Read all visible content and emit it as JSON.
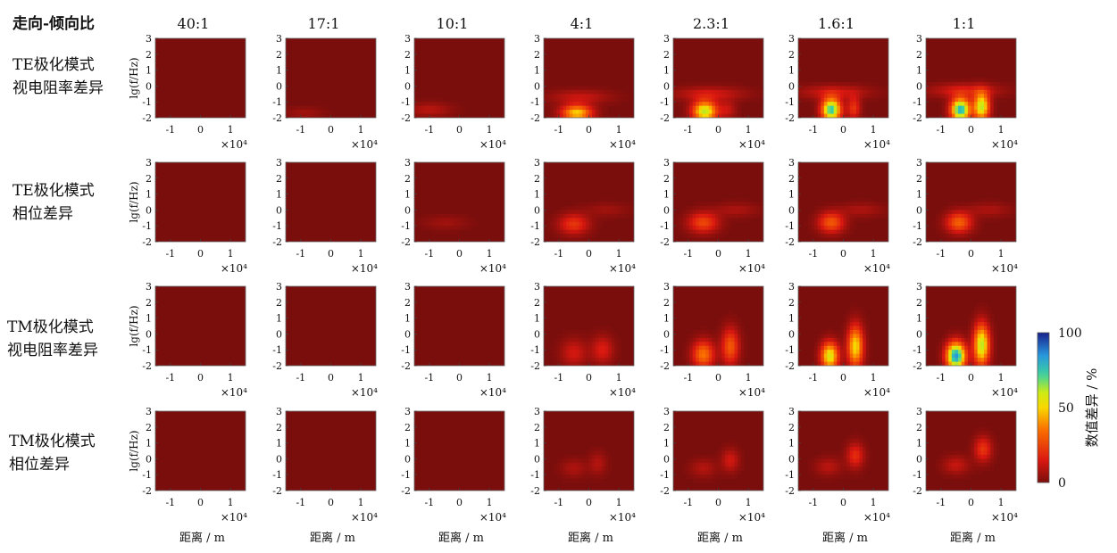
{
  "chart_data": {
    "type": "heatmap",
    "corner_label": "走向-倾向比",
    "columns": [
      "40:1",
      "17:1",
      "10:1",
      "4:1",
      "2.3:1",
      "1.6:1",
      "1:1"
    ],
    "rows": [
      {
        "label_lines": [
          "TE极化模式",
          "视电阻率差异"
        ],
        "key": "te_res"
      },
      {
        "label_lines": [
          "TE极化模式",
          "相位差异"
        ],
        "key": "te_phase"
      },
      {
        "label_lines": [
          "TM极化模式",
          "视电阻率差异"
        ],
        "key": "tm_res"
      },
      {
        "label_lines": [
          "TM极化模式",
          "相位差异"
        ],
        "key": "tm_phase"
      }
    ],
    "ylabel": "lg(f/Hz)",
    "xlabel": "距离 / m",
    "x_multiplier": "×10⁴",
    "xticks": [
      -1,
      0,
      1
    ],
    "yticks": [
      3,
      2,
      1,
      0,
      -1,
      -2
    ],
    "xlim": [
      -1.5,
      1.5
    ],
    "ylim": [
      -2,
      3
    ],
    "colorbar": {
      "label": "数值差异 / %",
      "ticks": [
        0,
        50,
        100
      ],
      "range": [
        0,
        100
      ]
    },
    "anomalies": {
      "te_res": [
        [],
        [
          {
            "x": -0.9,
            "y": -1.7,
            "sx": 0.45,
            "sy": 0.25,
            "peak": 6
          }
        ],
        [
          {
            "x": -1.0,
            "y": -1.5,
            "sx": 0.5,
            "sy": 0.3,
            "peak": 10
          }
        ],
        [
          {
            "x": -0.4,
            "y": -1.7,
            "sx": 0.35,
            "sy": 0.35,
            "peak": 50
          },
          {
            "x": -0.3,
            "y": -0.7,
            "sx": 0.7,
            "sy": 0.3,
            "peak": 12
          }
        ],
        [
          {
            "x": -0.45,
            "y": -1.6,
            "sx": 0.28,
            "sy": 0.45,
            "peak": 62
          },
          {
            "x": -0.3,
            "y": -0.5,
            "sx": 0.8,
            "sy": 0.3,
            "peak": 14
          },
          {
            "x": 0.3,
            "y": -1.5,
            "sx": 0.2,
            "sy": 0.4,
            "peak": 12
          }
        ],
        [
          {
            "x": -0.4,
            "y": -1.5,
            "sx": 0.22,
            "sy": 0.5,
            "peak": 75
          },
          {
            "x": 0.35,
            "y": -1.4,
            "sx": 0.15,
            "sy": 0.5,
            "peak": 22
          },
          {
            "x": -0.3,
            "y": -0.4,
            "sx": 0.8,
            "sy": 0.3,
            "peak": 14
          }
        ],
        [
          {
            "x": -0.35,
            "y": -1.5,
            "sx": 0.22,
            "sy": 0.5,
            "peak": 80
          },
          {
            "x": 0.35,
            "y": -1.3,
            "sx": 0.18,
            "sy": 0.6,
            "peak": 62
          },
          {
            "x": -0.2,
            "y": -0.3,
            "sx": 0.8,
            "sy": 0.3,
            "peak": 16
          }
        ]
      ],
      "te_phase": [
        [],
        [],
        [
          {
            "x": -0.45,
            "y": -0.8,
            "sx": 0.5,
            "sy": 0.3,
            "peak": 6
          }
        ],
        [
          {
            "x": -0.5,
            "y": -0.9,
            "sx": 0.35,
            "sy": 0.45,
            "peak": 22
          },
          {
            "x": 0.6,
            "y": 0.0,
            "sx": 0.5,
            "sy": 0.3,
            "peak": 6
          }
        ],
        [
          {
            "x": -0.5,
            "y": -0.8,
            "sx": 0.35,
            "sy": 0.45,
            "peak": 26
          },
          {
            "x": 0.6,
            "y": 0.0,
            "sx": 0.5,
            "sy": 0.3,
            "peak": 8
          }
        ],
        [
          {
            "x": -0.4,
            "y": -0.8,
            "sx": 0.3,
            "sy": 0.45,
            "peak": 30
          },
          {
            "x": 0.6,
            "y": 0.0,
            "sx": 0.5,
            "sy": 0.3,
            "peak": 8
          }
        ],
        [
          {
            "x": -0.4,
            "y": -0.8,
            "sx": 0.3,
            "sy": 0.45,
            "peak": 32
          },
          {
            "x": 0.6,
            "y": 0.0,
            "sx": 0.5,
            "sy": 0.3,
            "peak": 8
          }
        ]
      ],
      "tm_res": [
        [],
        [],
        [],
        [
          {
            "x": -0.5,
            "y": -1.2,
            "sx": 0.3,
            "sy": 0.6,
            "peak": 14
          },
          {
            "x": 0.45,
            "y": -1.0,
            "sx": 0.25,
            "sy": 0.6,
            "peak": 16
          }
        ],
        [
          {
            "x": -0.5,
            "y": -1.3,
            "sx": 0.25,
            "sy": 0.6,
            "peak": 36
          },
          {
            "x": 0.4,
            "y": -0.8,
            "sx": 0.2,
            "sy": 0.8,
            "peak": 30
          }
        ],
        [
          {
            "x": -0.45,
            "y": -1.4,
            "sx": 0.2,
            "sy": 0.6,
            "peak": 58
          },
          {
            "x": 0.4,
            "y": -0.8,
            "sx": 0.18,
            "sy": 0.9,
            "peak": 52
          }
        ],
        [
          {
            "x": -0.5,
            "y": -1.4,
            "sx": 0.22,
            "sy": 0.6,
            "peak": 85
          },
          {
            "x": 0.35,
            "y": -0.7,
            "sx": 0.18,
            "sy": 0.9,
            "peak": 62
          }
        ]
      ],
      "tm_phase": [
        [],
        [],
        [],
        [
          {
            "x": -0.5,
            "y": -0.6,
            "sx": 0.3,
            "sy": 0.4,
            "peak": 8
          },
          {
            "x": 0.3,
            "y": -0.3,
            "sx": 0.2,
            "sy": 0.5,
            "peak": 9
          }
        ],
        [
          {
            "x": -0.5,
            "y": -0.6,
            "sx": 0.3,
            "sy": 0.4,
            "peak": 9
          },
          {
            "x": 0.4,
            "y": -0.1,
            "sx": 0.2,
            "sy": 0.5,
            "peak": 14
          }
        ],
        [
          {
            "x": -0.5,
            "y": -0.5,
            "sx": 0.3,
            "sy": 0.4,
            "peak": 10
          },
          {
            "x": 0.4,
            "y": 0.2,
            "sx": 0.2,
            "sy": 0.55,
            "peak": 20
          }
        ],
        [
          {
            "x": -0.5,
            "y": -0.4,
            "sx": 0.3,
            "sy": 0.4,
            "peak": 12
          },
          {
            "x": 0.4,
            "y": 0.6,
            "sx": 0.2,
            "sy": 0.55,
            "peak": 22
          }
        ]
      ]
    }
  }
}
